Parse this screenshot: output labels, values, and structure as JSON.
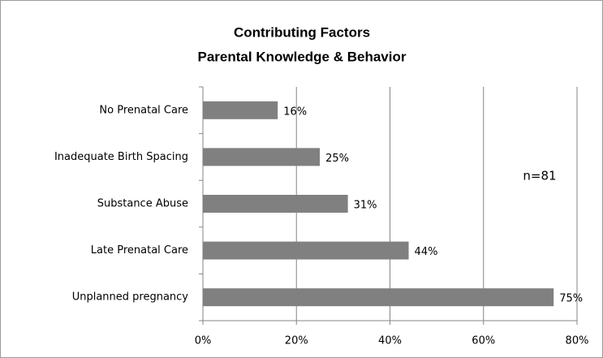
{
  "chart_data": {
    "type": "bar",
    "orientation": "horizontal",
    "title": "Contributing Factors",
    "subtitle": "Parental Knowledge & Behavior",
    "categories": [
      "No Prenatal Care",
      "Inadequate Birth Spacing",
      "Substance Abuse",
      "Late Prenatal Care",
      "Unplanned pregnancy"
    ],
    "values": [
      16,
      25,
      31,
      44,
      75
    ],
    "value_labels": [
      "16%",
      "25%",
      "31%",
      "44%",
      "75%"
    ],
    "color": "#808080",
    "xlim": [
      0,
      80
    ],
    "xticks": [
      {
        "value": 0,
        "label": "0%"
      },
      {
        "value": 20,
        "label": "20%"
      },
      {
        "value": 40,
        "label": "40%"
      },
      {
        "value": 60,
        "label": "60%"
      },
      {
        "value": 80,
        "label": "80%"
      }
    ],
    "grid": true,
    "annotation": "n=81"
  }
}
